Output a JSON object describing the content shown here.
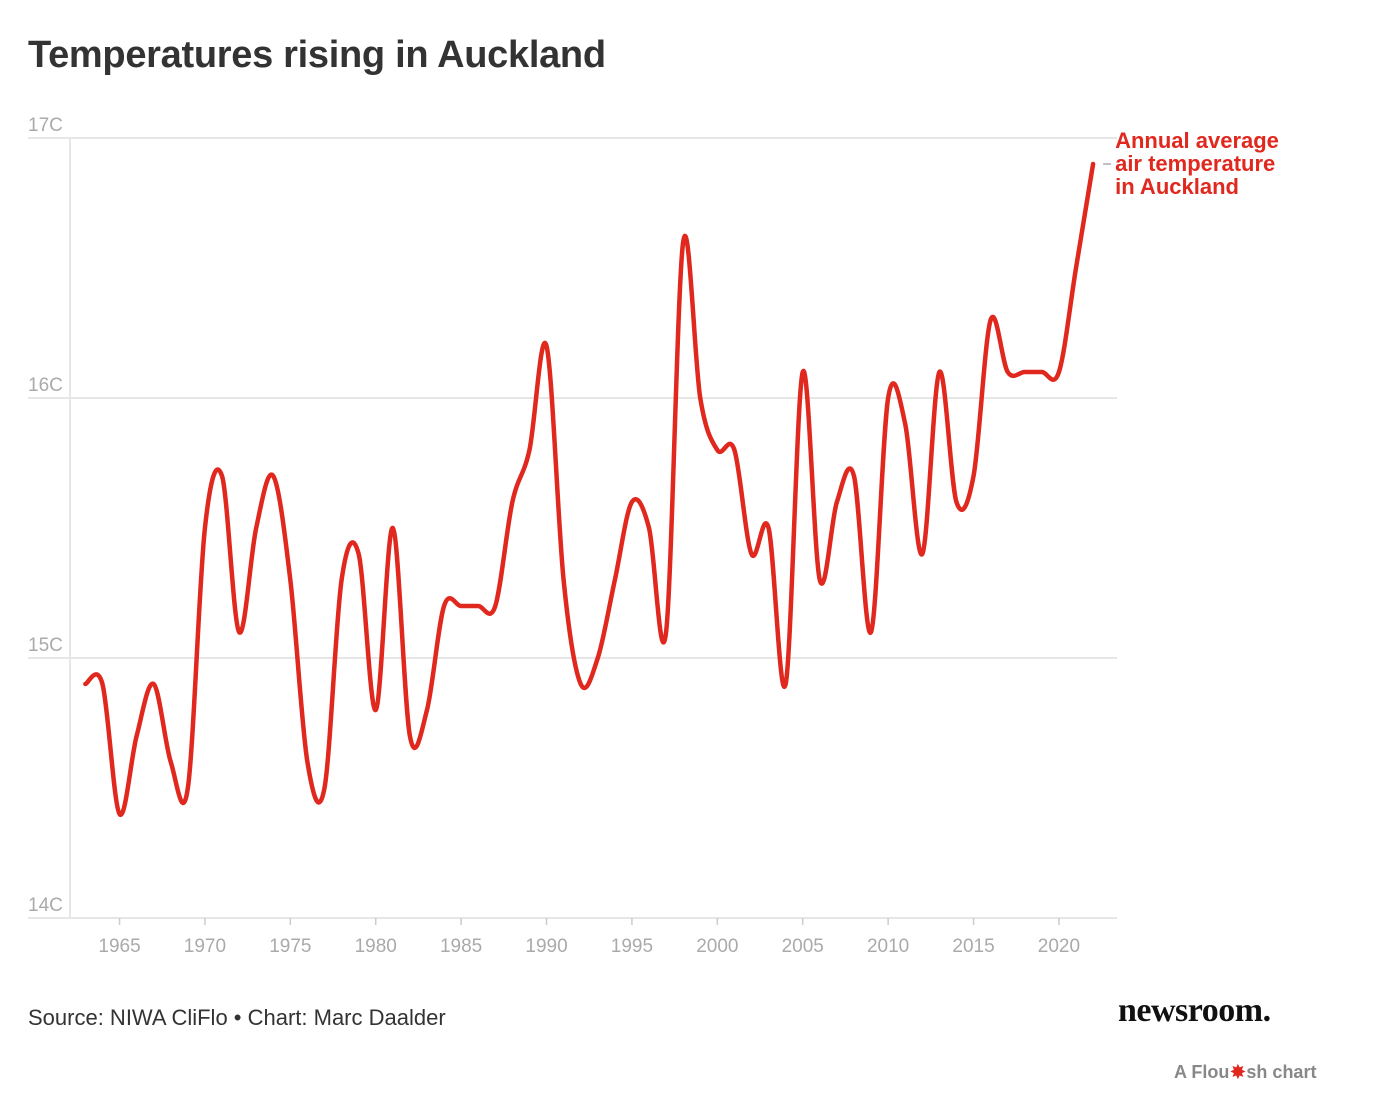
{
  "title": "Temperatures rising in Auckland",
  "source": "Source: NIWA CliFlo • Chart: Marc Daalder",
  "brand": "newsroom.",
  "flourish": {
    "prefix": "A Flou",
    "suffix": "sh chart",
    "icon": "flourish-burst-icon"
  },
  "colors": {
    "line": "#e0281f",
    "grid": "#e6e6e6",
    "axis_text": "#aaaaaa",
    "title": "#333333"
  },
  "chart_data": {
    "type": "line",
    "title": "Temperatures rising in Auckland",
    "xlabel": "",
    "ylabel": "",
    "xlim": [
      1962.1,
      2023.4
    ],
    "ylim": [
      14,
      17
    ],
    "y_ticks": [
      {
        "value": 17,
        "label": "17C"
      },
      {
        "value": 16,
        "label": "16C"
      },
      {
        "value": 15,
        "label": "15C"
      },
      {
        "value": 14,
        "label": "14C"
      }
    ],
    "x_ticks": [
      {
        "value": 1965,
        "label": "1965"
      },
      {
        "value": 1970,
        "label": "1970"
      },
      {
        "value": 1975,
        "label": "1975"
      },
      {
        "value": 1980,
        "label": "1980"
      },
      {
        "value": 1985,
        "label": "1985"
      },
      {
        "value": 1990,
        "label": "1990"
      },
      {
        "value": 1995,
        "label": "1995"
      },
      {
        "value": 2000,
        "label": "2000"
      },
      {
        "value": 2005,
        "label": "2005"
      },
      {
        "value": 2010,
        "label": "2010"
      },
      {
        "value": 2015,
        "label": "2015"
      },
      {
        "value": 2020,
        "label": "2020"
      }
    ],
    "grid": true,
    "series": [
      {
        "name": "Annual average air temperature in Auckland",
        "label_lines": [
          "Annual average",
          "air temperature",
          "in Auckland"
        ],
        "x": [
          1963,
          1964,
          1965,
          1966,
          1967,
          1968,
          1969,
          1970,
          1971,
          1972,
          1973,
          1974,
          1975,
          1976,
          1977,
          1978,
          1979,
          1980,
          1981,
          1982,
          1983,
          1984,
          1985,
          1986,
          1987,
          1988,
          1989,
          1990,
          1991,
          1992,
          1993,
          1994,
          1995,
          1996,
          1997,
          1998,
          1999,
          2000,
          2001,
          2002,
          2003,
          2004,
          2005,
          2006,
          2007,
          2008,
          2009,
          2010,
          2011,
          2012,
          2013,
          2014,
          2015,
          2016,
          2017,
          2018,
          2019,
          2020,
          2021,
          2022
        ],
        "values": [
          14.9,
          14.9,
          14.4,
          14.7,
          14.9,
          14.6,
          14.5,
          15.5,
          15.7,
          15.1,
          15.5,
          15.7,
          15.3,
          14.6,
          14.5,
          15.3,
          15.4,
          14.8,
          15.5,
          14.7,
          14.8,
          15.2,
          15.2,
          15.2,
          15.2,
          15.6,
          15.8,
          16.2,
          15.3,
          14.9,
          15.0,
          15.3,
          15.6,
          15.5,
          15.1,
          16.6,
          16.0,
          15.8,
          15.8,
          15.4,
          15.5,
          14.9,
          16.1,
          15.3,
          15.6,
          15.7,
          15.1,
          16.0,
          15.9,
          15.4,
          16.1,
          15.6,
          15.7,
          16.3,
          16.1,
          16.1,
          16.1,
          16.1,
          16.5,
          16.9
        ]
      }
    ]
  }
}
